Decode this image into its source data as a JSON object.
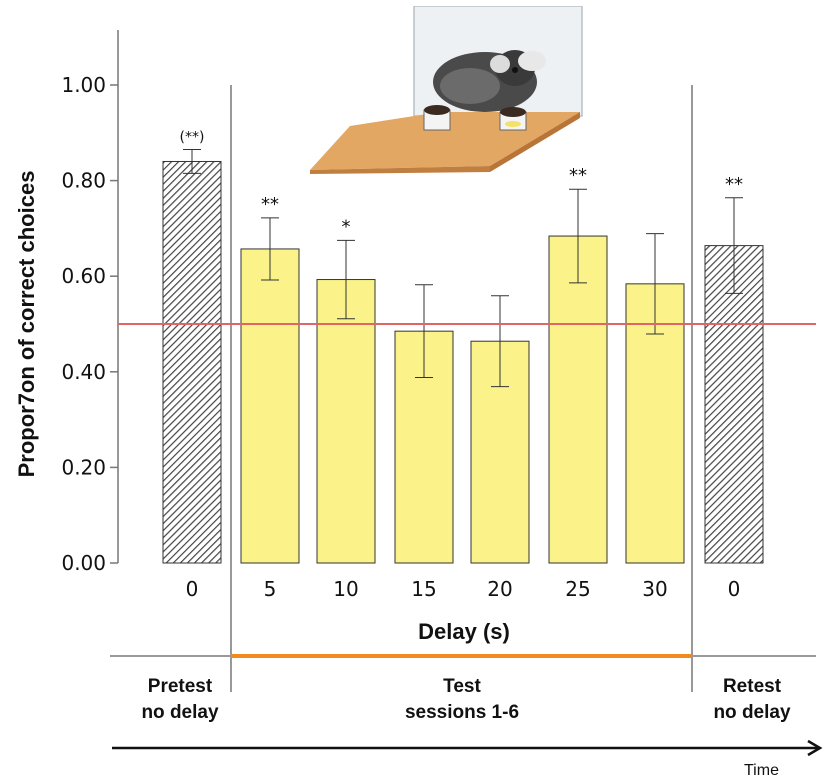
{
  "chart_data": {
    "type": "bar",
    "xlabel": "Delay (s)",
    "ylabel": "Propor7on of correct choices",
    "ylim": [
      0,
      1
    ],
    "yticks": [
      "0.00",
      "0.20",
      "0.40",
      "0.60",
      "0.80",
      "1.00"
    ],
    "chance_level": 0.5,
    "chance_line_color": "#e06666",
    "bars": [
      {
        "phase": "pretest",
        "delay": "0",
        "value": 0.84,
        "err": 0.025,
        "sig": "(**)",
        "style": "hatched"
      },
      {
        "phase": "test",
        "delay": "5",
        "value": 0.657,
        "err": 0.065,
        "sig": "**",
        "style": "yellow"
      },
      {
        "phase": "test",
        "delay": "10",
        "value": 0.593,
        "err": 0.082,
        "sig": "*",
        "style": "yellow"
      },
      {
        "phase": "test",
        "delay": "15",
        "value": 0.485,
        "err": 0.097,
        "sig": "",
        "style": "yellow"
      },
      {
        "phase": "test",
        "delay": "20",
        "value": 0.464,
        "err": 0.095,
        "sig": "",
        "style": "yellow"
      },
      {
        "phase": "test",
        "delay": "25",
        "value": 0.684,
        "err": 0.098,
        "sig": "**",
        "style": "yellow"
      },
      {
        "phase": "test",
        "delay": "30",
        "value": 0.584,
        "err": 0.105,
        "sig": "",
        "style": "yellow"
      },
      {
        "phase": "retest",
        "delay": "0",
        "value": 0.664,
        "err": 0.1,
        "sig": "**",
        "style": "hatched"
      }
    ],
    "colors": {
      "bar_fill": "#fbf389",
      "bar_stroke": "#333333",
      "hatch": "#555555",
      "test_line": "#f08a1c",
      "divider": "#999999"
    }
  },
  "phases": {
    "pretest": [
      "Pretest",
      "no delay"
    ],
    "test": [
      "Test",
      "sessions 1-6"
    ],
    "retest": [
      "Retest",
      "no delay"
    ]
  },
  "timeline_label": "Time",
  "photo_icon": "marmoset-choice-apparatus-icon"
}
